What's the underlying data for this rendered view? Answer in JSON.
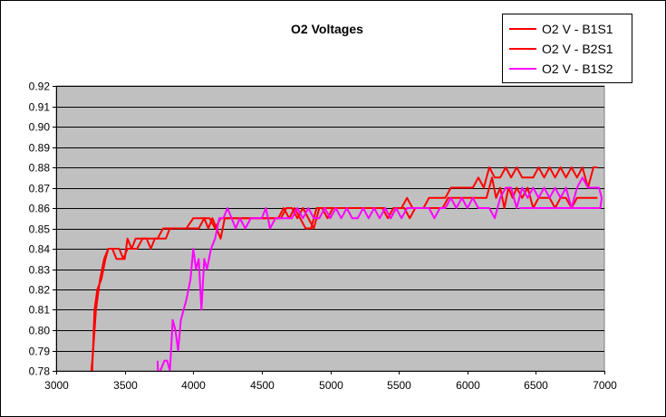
{
  "chart_data": {
    "type": "line",
    "title": "O2 Voltages",
    "xlabel": "",
    "ylabel": "",
    "xlim": [
      3000,
      7000
    ],
    "ylim": [
      0.78,
      0.92
    ],
    "xticks": [
      3000,
      3500,
      4000,
      4500,
      5000,
      5500,
      6000,
      6500,
      7000
    ],
    "yticks": [
      0.78,
      0.79,
      0.8,
      0.81,
      0.82,
      0.83,
      0.84,
      0.85,
      0.86,
      0.87,
      0.88,
      0.89,
      0.9,
      0.91,
      0.92
    ],
    "grid": true,
    "legend_position": "top-right",
    "colors": {
      "plot_bg": "#c0c0c0",
      "grid": "#000000"
    },
    "series": [
      {
        "name": "O2 V - B1S1",
        "color": "#ff0000",
        "points": [
          [
            3260,
            0.775
          ],
          [
            3280,
            0.81
          ],
          [
            3300,
            0.82
          ],
          [
            3330,
            0.825
          ],
          [
            3360,
            0.835
          ],
          [
            3380,
            0.84
          ],
          [
            3410,
            0.84
          ],
          [
            3440,
            0.835
          ],
          [
            3470,
            0.835
          ],
          [
            3500,
            0.835
          ],
          [
            3520,
            0.845
          ],
          [
            3550,
            0.84
          ],
          [
            3590,
            0.84
          ],
          [
            3630,
            0.845
          ],
          [
            3660,
            0.845
          ],
          [
            3690,
            0.84
          ],
          [
            3720,
            0.845
          ],
          [
            3760,
            0.845
          ],
          [
            3800,
            0.845
          ],
          [
            3830,
            0.85
          ],
          [
            3860,
            0.85
          ],
          [
            3900,
            0.85
          ],
          [
            3950,
            0.85
          ],
          [
            4000,
            0.855
          ],
          [
            4040,
            0.855
          ],
          [
            4080,
            0.855
          ],
          [
            4120,
            0.855
          ],
          [
            4160,
            0.85
          ],
          [
            4200,
            0.855
          ],
          [
            4240,
            0.855
          ],
          [
            4280,
            0.855
          ],
          [
            4320,
            0.855
          ],
          [
            4360,
            0.855
          ],
          [
            4400,
            0.855
          ],
          [
            4440,
            0.855
          ],
          [
            4480,
            0.855
          ],
          [
            4520,
            0.855
          ],
          [
            4560,
            0.855
          ],
          [
            4600,
            0.855
          ],
          [
            4640,
            0.855
          ],
          [
            4680,
            0.86
          ],
          [
            4720,
            0.86
          ],
          [
            4760,
            0.855
          ],
          [
            4800,
            0.86
          ],
          [
            4840,
            0.855
          ],
          [
            4880,
            0.85
          ],
          [
            4920,
            0.86
          ],
          [
            4960,
            0.86
          ],
          [
            5000,
            0.86
          ],
          [
            5040,
            0.86
          ],
          [
            5080,
            0.86
          ],
          [
            5120,
            0.86
          ],
          [
            5160,
            0.86
          ],
          [
            5200,
            0.86
          ],
          [
            5240,
            0.86
          ],
          [
            5280,
            0.86
          ],
          [
            5320,
            0.86
          ],
          [
            5360,
            0.86
          ],
          [
            5400,
            0.86
          ],
          [
            5440,
            0.855
          ],
          [
            5480,
            0.86
          ],
          [
            5520,
            0.86
          ],
          [
            5560,
            0.865
          ],
          [
            5600,
            0.86
          ],
          [
            5640,
            0.86
          ],
          [
            5680,
            0.86
          ],
          [
            5720,
            0.865
          ],
          [
            5760,
            0.865
          ],
          [
            5800,
            0.865
          ],
          [
            5840,
            0.865
          ],
          [
            5880,
            0.87
          ],
          [
            5920,
            0.87
          ],
          [
            5960,
            0.87
          ],
          [
            6000,
            0.87
          ],
          [
            6040,
            0.87
          ],
          [
            6080,
            0.875
          ],
          [
            6120,
            0.87
          ],
          [
            6160,
            0.88
          ],
          [
            6200,
            0.875
          ],
          [
            6240,
            0.875
          ],
          [
            6280,
            0.88
          ],
          [
            6320,
            0.875
          ],
          [
            6360,
            0.88
          ],
          [
            6400,
            0.875
          ],
          [
            6440,
            0.875
          ],
          [
            6480,
            0.875
          ],
          [
            6520,
            0.88
          ],
          [
            6560,
            0.875
          ],
          [
            6600,
            0.88
          ],
          [
            6640,
            0.875
          ],
          [
            6680,
            0.88
          ],
          [
            6720,
            0.875
          ],
          [
            6760,
            0.88
          ],
          [
            6800,
            0.875
          ],
          [
            6840,
            0.88
          ],
          [
            6880,
            0.87
          ],
          [
            6920,
            0.88
          ],
          [
            6950,
            0.88
          ]
        ]
      },
      {
        "name": "O2 V - B2S1",
        "color": "#ff0000",
        "points": [
          [
            3250,
            0.775
          ],
          [
            3270,
            0.79
          ],
          [
            3290,
            0.81
          ],
          [
            3320,
            0.825
          ],
          [
            3350,
            0.835
          ],
          [
            3380,
            0.84
          ],
          [
            3400,
            0.84
          ],
          [
            3430,
            0.84
          ],
          [
            3460,
            0.84
          ],
          [
            3490,
            0.835
          ],
          [
            3520,
            0.84
          ],
          [
            3550,
            0.84
          ],
          [
            3580,
            0.845
          ],
          [
            3620,
            0.845
          ],
          [
            3660,
            0.845
          ],
          [
            3700,
            0.845
          ],
          [
            3740,
            0.845
          ],
          [
            3780,
            0.85
          ],
          [
            3820,
            0.85
          ],
          [
            3860,
            0.85
          ],
          [
            3900,
            0.85
          ],
          [
            3950,
            0.85
          ],
          [
            4000,
            0.85
          ],
          [
            4040,
            0.85
          ],
          [
            4080,
            0.855
          ],
          [
            4110,
            0.85
          ],
          [
            4140,
            0.855
          ],
          [
            4170,
            0.85
          ],
          [
            4200,
            0.845
          ],
          [
            4230,
            0.855
          ],
          [
            4260,
            0.855
          ],
          [
            4300,
            0.855
          ],
          [
            4340,
            0.855
          ],
          [
            4380,
            0.855
          ],
          [
            4420,
            0.855
          ],
          [
            4460,
            0.855
          ],
          [
            4500,
            0.855
          ],
          [
            4540,
            0.855
          ],
          [
            4580,
            0.855
          ],
          [
            4620,
            0.855
          ],
          [
            4660,
            0.86
          ],
          [
            4700,
            0.855
          ],
          [
            4740,
            0.86
          ],
          [
            4780,
            0.855
          ],
          [
            4820,
            0.85
          ],
          [
            4860,
            0.85
          ],
          [
            4900,
            0.86
          ],
          [
            4940,
            0.86
          ],
          [
            4980,
            0.855
          ],
          [
            5020,
            0.86
          ],
          [
            5060,
            0.86
          ],
          [
            5100,
            0.86
          ],
          [
            5140,
            0.86
          ],
          [
            5180,
            0.86
          ],
          [
            5220,
            0.86
          ],
          [
            5260,
            0.86
          ],
          [
            5300,
            0.86
          ],
          [
            5340,
            0.86
          ],
          [
            5380,
            0.86
          ],
          [
            5420,
            0.855
          ],
          [
            5460,
            0.86
          ],
          [
            5500,
            0.86
          ],
          [
            5540,
            0.86
          ],
          [
            5580,
            0.855
          ],
          [
            5620,
            0.86
          ],
          [
            5660,
            0.86
          ],
          [
            5700,
            0.86
          ],
          [
            5740,
            0.86
          ],
          [
            5780,
            0.86
          ],
          [
            5820,
            0.86
          ],
          [
            5860,
            0.865
          ],
          [
            5900,
            0.865
          ],
          [
            5940,
            0.865
          ],
          [
            5980,
            0.865
          ],
          [
            6020,
            0.865
          ],
          [
            6060,
            0.865
          ],
          [
            6100,
            0.865
          ],
          [
            6140,
            0.865
          ],
          [
            6180,
            0.875
          ],
          [
            6210,
            0.865
          ],
          [
            6240,
            0.87
          ],
          [
            6270,
            0.86
          ],
          [
            6300,
            0.87
          ],
          [
            6330,
            0.865
          ],
          [
            6360,
            0.87
          ],
          [
            6400,
            0.865
          ],
          [
            6440,
            0.87
          ],
          [
            6480,
            0.86
          ],
          [
            6520,
            0.865
          ],
          [
            6560,
            0.865
          ],
          [
            6600,
            0.865
          ],
          [
            6640,
            0.86
          ],
          [
            6680,
            0.865
          ],
          [
            6720,
            0.865
          ],
          [
            6760,
            0.86
          ],
          [
            6800,
            0.865
          ],
          [
            6840,
            0.865
          ],
          [
            6880,
            0.865
          ],
          [
            6920,
            0.865
          ],
          [
            6950,
            0.865
          ]
        ]
      },
      {
        "name": "O2 V - B1S2",
        "color": "#ff00ff",
        "points": [
          [
            3740,
            0.785
          ],
          [
            3745,
            0.775
          ],
          [
            3760,
            0.78
          ],
          [
            3790,
            0.785
          ],
          [
            3810,
            0.785
          ],
          [
            3830,
            0.78
          ],
          [
            3850,
            0.805
          ],
          [
            3870,
            0.8
          ],
          [
            3890,
            0.79
          ],
          [
            3910,
            0.805
          ],
          [
            3930,
            0.81
          ],
          [
            3950,
            0.815
          ],
          [
            3980,
            0.825
          ],
          [
            4000,
            0.84
          ],
          [
            4020,
            0.83
          ],
          [
            4040,
            0.835
          ],
          [
            4060,
            0.81
          ],
          [
            4080,
            0.835
          ],
          [
            4100,
            0.83
          ],
          [
            4130,
            0.84
          ],
          [
            4160,
            0.845
          ],
          [
            4190,
            0.855
          ],
          [
            4220,
            0.855
          ],
          [
            4250,
            0.86
          ],
          [
            4280,
            0.855
          ],
          [
            4310,
            0.85
          ],
          [
            4340,
            0.855
          ],
          [
            4380,
            0.85
          ],
          [
            4420,
            0.855
          ],
          [
            4460,
            0.855
          ],
          [
            4500,
            0.855
          ],
          [
            4530,
            0.86
          ],
          [
            4560,
            0.85
          ],
          [
            4600,
            0.855
          ],
          [
            4640,
            0.855
          ],
          [
            4680,
            0.855
          ],
          [
            4720,
            0.855
          ],
          [
            4760,
            0.86
          ],
          [
            4800,
            0.855
          ],
          [
            4840,
            0.86
          ],
          [
            4880,
            0.855
          ],
          [
            4920,
            0.855
          ],
          [
            4960,
            0.86
          ],
          [
            5000,
            0.855
          ],
          [
            5040,
            0.86
          ],
          [
            5080,
            0.855
          ],
          [
            5120,
            0.86
          ],
          [
            5160,
            0.855
          ],
          [
            5200,
            0.855
          ],
          [
            5240,
            0.86
          ],
          [
            5280,
            0.855
          ],
          [
            5320,
            0.86
          ],
          [
            5360,
            0.855
          ],
          [
            5400,
            0.86
          ],
          [
            5440,
            0.855
          ],
          [
            5480,
            0.86
          ],
          [
            5520,
            0.855
          ],
          [
            5560,
            0.86
          ],
          [
            5600,
            0.86
          ],
          [
            5640,
            0.86
          ],
          [
            5680,
            0.86
          ],
          [
            5720,
            0.86
          ],
          [
            5760,
            0.855
          ],
          [
            5800,
            0.86
          ],
          [
            5840,
            0.86
          ],
          [
            5880,
            0.865
          ],
          [
            5920,
            0.86
          ],
          [
            5960,
            0.865
          ],
          [
            6000,
            0.86
          ],
          [
            6040,
            0.865
          ],
          [
            6080,
            0.86
          ],
          [
            6120,
            0.86
          ],
          [
            6160,
            0.86
          ],
          [
            6200,
            0.855
          ],
          [
            6240,
            0.865
          ],
          [
            6280,
            0.87
          ],
          [
            6320,
            0.87
          ],
          [
            6360,
            0.86
          ],
          [
            6400,
            0.87
          ],
          [
            6440,
            0.865
          ],
          [
            6480,
            0.87
          ],
          [
            6520,
            0.865
          ],
          [
            6560,
            0.87
          ],
          [
            6600,
            0.865
          ],
          [
            6640,
            0.87
          ],
          [
            6680,
            0.865
          ],
          [
            6720,
            0.87
          ],
          [
            6760,
            0.86
          ],
          [
            6800,
            0.87
          ],
          [
            6840,
            0.875
          ],
          [
            6880,
            0.87
          ],
          [
            6920,
            0.87
          ],
          [
            6960,
            0.87
          ],
          [
            6980,
            0.865
          ],
          [
            6970,
            0.86
          ],
          [
            6940,
            0.86
          ],
          [
            6900,
            0.86
          ],
          [
            6860,
            0.86
          ],
          [
            6820,
            0.86
          ],
          [
            6780,
            0.86
          ],
          [
            6740,
            0.86
          ],
          [
            6700,
            0.86
          ],
          [
            6660,
            0.86
          ],
          [
            6620,
            0.86
          ],
          [
            6580,
            0.86
          ],
          [
            6540,
            0.86
          ],
          [
            6500,
            0.86
          ],
          [
            6460,
            0.86
          ],
          [
            6420,
            0.86
          ],
          [
            6380,
            0.86
          ]
        ]
      }
    ]
  }
}
